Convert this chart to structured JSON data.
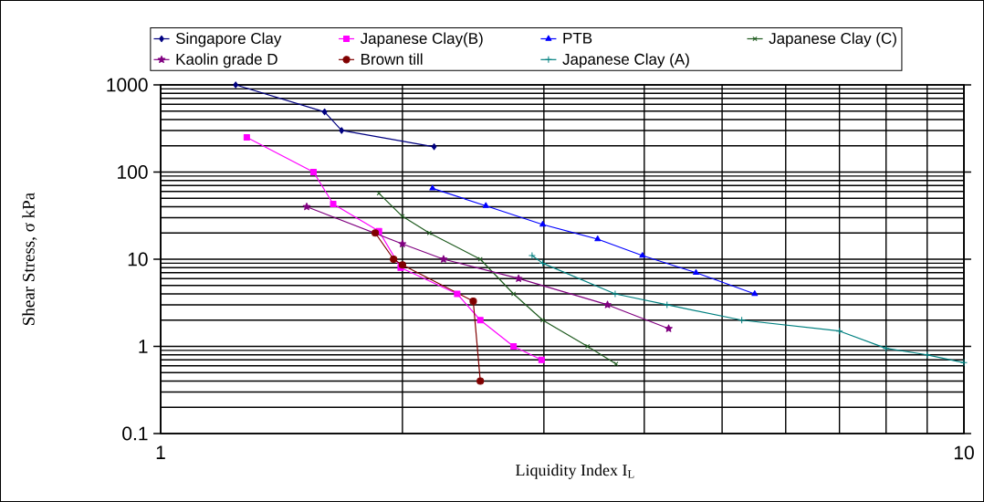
{
  "chart_data": {
    "type": "line",
    "xlabel": "Liquidity Index I$_{L}$",
    "ylabel": "Shear Stress, σ kPa",
    "log": "xy",
    "xlim": [
      1,
      10
    ],
    "ylim": [
      0.1,
      1000
    ],
    "xticks": [
      1,
      10
    ],
    "yticks": [
      0.1,
      1,
      10,
      100,
      1000
    ],
    "grid": true,
    "legend": "top",
    "series": [
      {
        "name": "Singapore Clay",
        "color": "#000080",
        "marker": "diamond",
        "x": [
          1.24,
          1.6,
          1.68,
          2.19
        ],
        "values": [
          1000,
          490,
          300,
          195
        ]
      },
      {
        "name": "Japanese Clay(B)",
        "color": "#ff00ff",
        "marker": "square",
        "x": [
          1.28,
          1.55,
          1.64,
          1.87,
          1.99,
          2.34,
          2.5,
          2.75,
          2.98
        ],
        "values": [
          250,
          100,
          43,
          21,
          8,
          4,
          2,
          1,
          0.7
        ]
      },
      {
        "name": "PTB",
        "color": "#0000ff",
        "marker": "triangle",
        "x": [
          2.18,
          2.54,
          2.99,
          3.5,
          3.98,
          4.64,
          5.49
        ],
        "values": [
          65,
          41,
          25,
          17,
          11,
          7,
          4
        ]
      },
      {
        "name": "Japanese Clay (C)",
        "color": "#1e5a1e",
        "marker": "cross",
        "x": [
          1.87,
          2.0,
          2.16,
          2.5,
          2.75,
          2.99,
          3.4,
          3.69
        ],
        "values": [
          57,
          31,
          20,
          10,
          4,
          2,
          1,
          0.63
        ]
      },
      {
        "name": "Kaolin grade D",
        "color": "#800080",
        "marker": "star",
        "x": [
          1.52,
          2.0,
          2.25,
          2.79,
          3.6,
          4.29
        ],
        "values": [
          40,
          15,
          10,
          6,
          3,
          1.6
        ]
      },
      {
        "name": "Brown till",
        "color": "#800000",
        "marker": "circle",
        "x": [
          1.85,
          1.95,
          2.0,
          2.45,
          2.5
        ],
        "values": [
          20,
          10,
          8.6,
          3.3,
          0.4
        ]
      },
      {
        "name": "Japanese Clay (A)",
        "color": "#008080",
        "marker": "plus",
        "x": [
          2.9,
          2.99,
          3.68,
          4.27,
          5.29,
          7.0,
          8.0,
          9.0,
          10.0
        ],
        "values": [
          11,
          9,
          4,
          3,
          2,
          1.5,
          0.95,
          0.8,
          0.65
        ]
      }
    ]
  }
}
